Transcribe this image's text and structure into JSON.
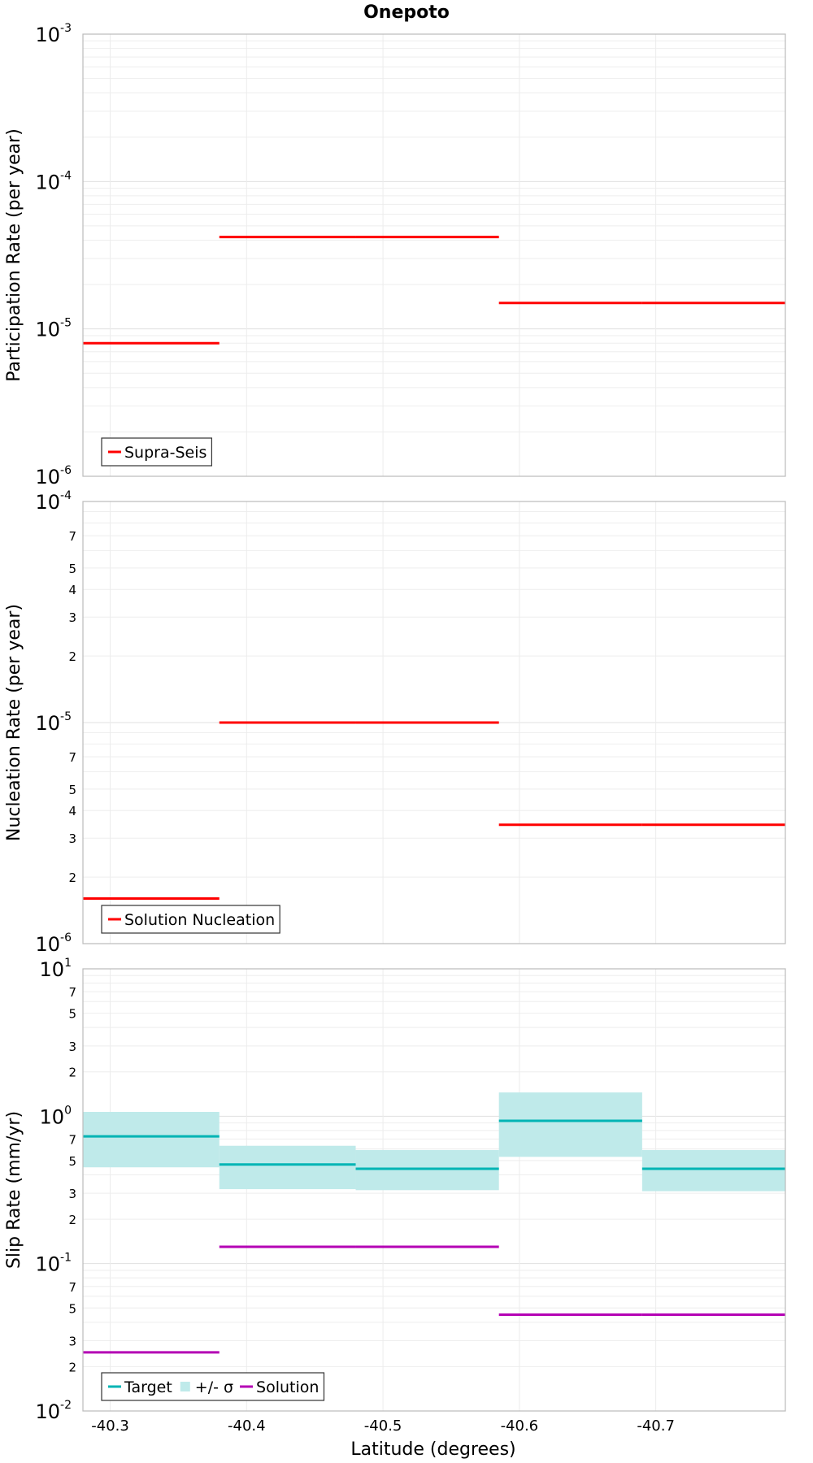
{
  "chart_data": {
    "title": "Onepoto",
    "type": "line",
    "xlabel": "Latitude (degrees)",
    "xlim": [
      -40.28,
      -40.795
    ],
    "x_tick_labels": [
      "-40.3",
      "-40.4",
      "-40.5",
      "-40.6",
      "-40.7"
    ],
    "x_ticks": [
      -40.3,
      -40.4,
      -40.5,
      -40.6,
      -40.7
    ],
    "segment_edges": [
      -40.28,
      -40.38,
      -40.48,
      -40.585,
      -40.69,
      -40.795
    ],
    "grid": true,
    "panels": [
      {
        "id": "participation",
        "ylabel": "Participation Rate (per year)",
        "yscale": "log",
        "ylim": [
          1e-06,
          0.001
        ],
        "major_tick_labels": [
          {
            "base": "10",
            "exp": "-6",
            "value": 1e-06
          },
          {
            "base": "10",
            "exp": "-5",
            "value": 1e-05
          },
          {
            "base": "10",
            "exp": "-4",
            "value": 0.0001
          },
          {
            "base": "10",
            "exp": "-3",
            "value": 0.001
          }
        ],
        "minor_tick_labels": [],
        "legend": {
          "placement": "bottom-left",
          "entries": [
            {
              "label": "Supra-Seis",
              "color": "#ff0000",
              "kind": "line"
            }
          ]
        },
        "series": [
          {
            "name": "Supra-Seis",
            "color": "#ff0000",
            "kind": "step",
            "values": [
              8e-06,
              4.2e-05,
              4.2e-05,
              1.5e-05,
              1.5e-05
            ]
          }
        ]
      },
      {
        "id": "nucleation",
        "ylabel": "Nucleation Rate (per year)",
        "yscale": "log",
        "ylim": [
          1e-06,
          0.0001
        ],
        "major_tick_labels": [
          {
            "base": "10",
            "exp": "-6",
            "value": 1e-06
          },
          {
            "base": "10",
            "exp": "-5",
            "value": 1e-05
          },
          {
            "base": "10",
            "exp": "-4",
            "value": 0.0001
          }
        ],
        "minor_tick_labels": [
          {
            "label": "2",
            "value": 2e-06
          },
          {
            "label": "3",
            "value": 3e-06
          },
          {
            "label": "4",
            "value": 4e-06
          },
          {
            "label": "5",
            "value": 5e-06
          },
          {
            "label": "7",
            "value": 7e-06
          },
          {
            "label": "2",
            "value": 2e-05
          },
          {
            "label": "3",
            "value": 3e-05
          },
          {
            "label": "4",
            "value": 4e-05
          },
          {
            "label": "5",
            "value": 5e-05
          },
          {
            "label": "7",
            "value": 7e-05
          }
        ],
        "legend": {
          "placement": "bottom-left",
          "entries": [
            {
              "label": "Solution Nucleation",
              "color": "#ff0000",
              "kind": "line"
            }
          ]
        },
        "series": [
          {
            "name": "Solution Nucleation",
            "color": "#ff0000",
            "kind": "step",
            "values": [
              1.6e-06,
              1e-05,
              1e-05,
              3.45e-06,
              3.45e-06
            ]
          }
        ]
      },
      {
        "id": "slip",
        "ylabel": "Slip Rate (mm/yr)",
        "yscale": "log",
        "ylim": [
          0.01,
          10
        ],
        "major_tick_labels": [
          {
            "base": "10",
            "exp": "-2",
            "value": 0.01
          },
          {
            "base": "10",
            "exp": "-1",
            "value": 0.1
          },
          {
            "base": "10",
            "exp": "0",
            "value": 1
          },
          {
            "base": "10",
            "exp": "1",
            "value": 10
          }
        ],
        "minor_tick_labels": [
          {
            "label": "2",
            "value": 0.02
          },
          {
            "label": "3",
            "value": 0.03
          },
          {
            "label": "5",
            "value": 0.05
          },
          {
            "label": "7",
            "value": 0.07
          },
          {
            "label": "2",
            "value": 0.2
          },
          {
            "label": "3",
            "value": 0.3
          },
          {
            "label": "5",
            "value": 0.5
          },
          {
            "label": "7",
            "value": 0.7
          },
          {
            "label": "2",
            "value": 2
          },
          {
            "label": "3",
            "value": 3
          },
          {
            "label": "5",
            "value": 5
          },
          {
            "label": "7",
            "value": 7
          }
        ],
        "legend": {
          "placement": "bottom-left",
          "entries": [
            {
              "label": "Target",
              "color": "#00b4b4",
              "kind": "line"
            },
            {
              "label": "+/- σ",
              "color": "#bfeaea",
              "kind": "box"
            },
            {
              "label": "Solution",
              "color": "#b400b4",
              "kind": "line"
            }
          ]
        },
        "bands": [
          {
            "name": "+/- σ",
            "color": "#bfeaea",
            "lower": [
              0.45,
              0.32,
              0.315,
              0.53,
              0.31
            ],
            "upper": [
              1.07,
              0.63,
              0.59,
              1.45,
              0.59
            ]
          }
        ],
        "series": [
          {
            "name": "Target",
            "color": "#00b4b4",
            "kind": "step",
            "values": [
              0.73,
              0.47,
              0.44,
              0.93,
              0.44
            ]
          },
          {
            "name": "Solution",
            "color": "#b400b4",
            "kind": "step",
            "values": [
              0.025,
              0.13,
              0.13,
              0.045,
              0.045
            ]
          }
        ]
      }
    ]
  }
}
